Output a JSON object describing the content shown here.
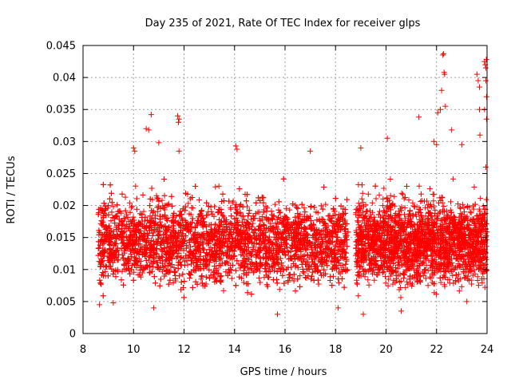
{
  "chart_data": {
    "type": "scatter",
    "title": "Day 235 of 2021, Rate Of TEC Index for receiver glps",
    "xlabel": "GPS time / hours",
    "ylabel": "ROTI / TECUs",
    "xlim": [
      8,
      24
    ],
    "ylim": [
      0,
      0.045
    ],
    "xticks": [
      8,
      10,
      12,
      14,
      16,
      18,
      20,
      22,
      24
    ],
    "yticks": [
      0,
      0.005,
      0.01,
      0.015,
      0.02,
      0.025,
      0.03,
      0.035,
      0.04,
      0.045
    ],
    "xtick_labels": [
      "8",
      "10",
      "12",
      "14",
      "16",
      "18",
      "20",
      "22",
      "24"
    ],
    "ytick_labels": [
      "0",
      "0.005",
      "0.01",
      "0.015",
      "0.02",
      "0.025",
      "0.03",
      "0.035",
      "0.04",
      "0.045"
    ],
    "grid": true,
    "marker": "+",
    "series": [
      {
        "name": "ROTI",
        "color": "#ff0000",
        "segments": [
          {
            "x_start": 8.6,
            "x_end": 18.5,
            "typical_min": 0.005,
            "typical_max": 0.022
          },
          {
            "x_start": 18.8,
            "x_end": 24.0,
            "typical_min": 0.005,
            "typical_max": 0.022
          }
        ],
        "notable_points": [
          {
            "x": 10.5,
            "y": 0.032
          },
          {
            "x": 10.6,
            "y": 0.0318
          },
          {
            "x": 10.7,
            "y": 0.0342
          },
          {
            "x": 11.75,
            "y": 0.034
          },
          {
            "x": 11.8,
            "y": 0.0335
          },
          {
            "x": 11.78,
            "y": 0.033
          },
          {
            "x": 10.0,
            "y": 0.029
          },
          {
            "x": 10.05,
            "y": 0.0285
          },
          {
            "x": 11.0,
            "y": 0.0298
          },
          {
            "x": 11.8,
            "y": 0.0285
          },
          {
            "x": 14.05,
            "y": 0.0293
          },
          {
            "x": 14.1,
            "y": 0.0288
          },
          {
            "x": 17.0,
            "y": 0.0285
          },
          {
            "x": 19.0,
            "y": 0.029
          },
          {
            "x": 20.05,
            "y": 0.0305
          },
          {
            "x": 21.3,
            "y": 0.0338
          },
          {
            "x": 21.9,
            "y": 0.03
          },
          {
            "x": 22.0,
            "y": 0.0295
          },
          {
            "x": 22.05,
            "y": 0.0345
          },
          {
            "x": 22.15,
            "y": 0.035
          },
          {
            "x": 22.2,
            "y": 0.038
          },
          {
            "x": 22.25,
            "y": 0.0435
          },
          {
            "x": 22.28,
            "y": 0.0437
          },
          {
            "x": 22.3,
            "y": 0.0408
          },
          {
            "x": 22.32,
            "y": 0.0405
          },
          {
            "x": 22.35,
            "y": 0.0355
          },
          {
            "x": 22.6,
            "y": 0.0318
          },
          {
            "x": 23.0,
            "y": 0.0295
          },
          {
            "x": 23.6,
            "y": 0.0405
          },
          {
            "x": 23.65,
            "y": 0.0395
          },
          {
            "x": 23.7,
            "y": 0.0385
          },
          {
            "x": 23.7,
            "y": 0.035
          },
          {
            "x": 23.72,
            "y": 0.031
          },
          {
            "x": 23.9,
            "y": 0.0425
          },
          {
            "x": 23.93,
            "y": 0.042
          },
          {
            "x": 23.95,
            "y": 0.0415
          },
          {
            "x": 23.97,
            "y": 0.0428
          },
          {
            "x": 23.95,
            "y": 0.0395
          },
          {
            "x": 23.98,
            "y": 0.037
          },
          {
            "x": 23.9,
            "y": 0.035
          },
          {
            "x": 23.98,
            "y": 0.0335
          },
          {
            "x": 23.95,
            "y": 0.026
          },
          {
            "x": 8.65,
            "y": 0.0045
          },
          {
            "x": 9.2,
            "y": 0.0048
          },
          {
            "x": 10.8,
            "y": 0.004
          },
          {
            "x": 15.7,
            "y": 0.003
          },
          {
            "x": 18.1,
            "y": 0.004
          },
          {
            "x": 19.1,
            "y": 0.003
          },
          {
            "x": 20.6,
            "y": 0.0035
          },
          {
            "x": 23.2,
            "y": 0.005
          }
        ]
      }
    ]
  }
}
